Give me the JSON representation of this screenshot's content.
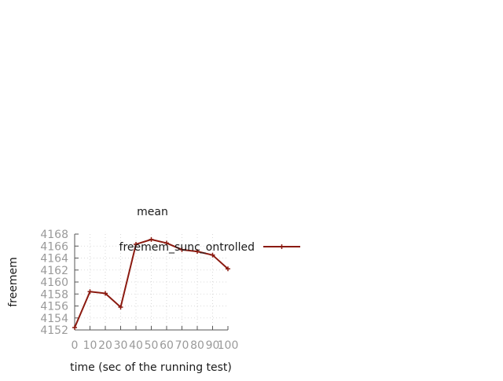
{
  "chart_data": {
    "type": "line",
    "title": "mean",
    "xlabel": "time (sec of the running test)",
    "ylabel": "freemem",
    "xlim": [
      0,
      100
    ],
    "ylim": [
      4152,
      4168
    ],
    "x_ticks": [
      "0",
      "10",
      "20",
      "30",
      "40",
      "50",
      "60",
      "70",
      "80",
      "90",
      "100"
    ],
    "y_ticks": [
      "4152",
      "4154",
      "4156",
      "4158",
      "4160",
      "4162",
      "4164",
      "4166",
      "4168"
    ],
    "grid": true,
    "legend_position": "top-right",
    "series": [
      {
        "name": "freemem_sunc_ontrolled",
        "color": "#8b1a10",
        "marker": "plus",
        "x": [
          0,
          10,
          20,
          30,
          40,
          50,
          60,
          70,
          80,
          90,
          100
        ],
        "values": [
          4152.4,
          4158.4,
          4158.1,
          4155.8,
          4166.3,
          4167.1,
          4166.5,
          4165.4,
          4165.1,
          4164.5,
          4162.2
        ]
      }
    ]
  }
}
